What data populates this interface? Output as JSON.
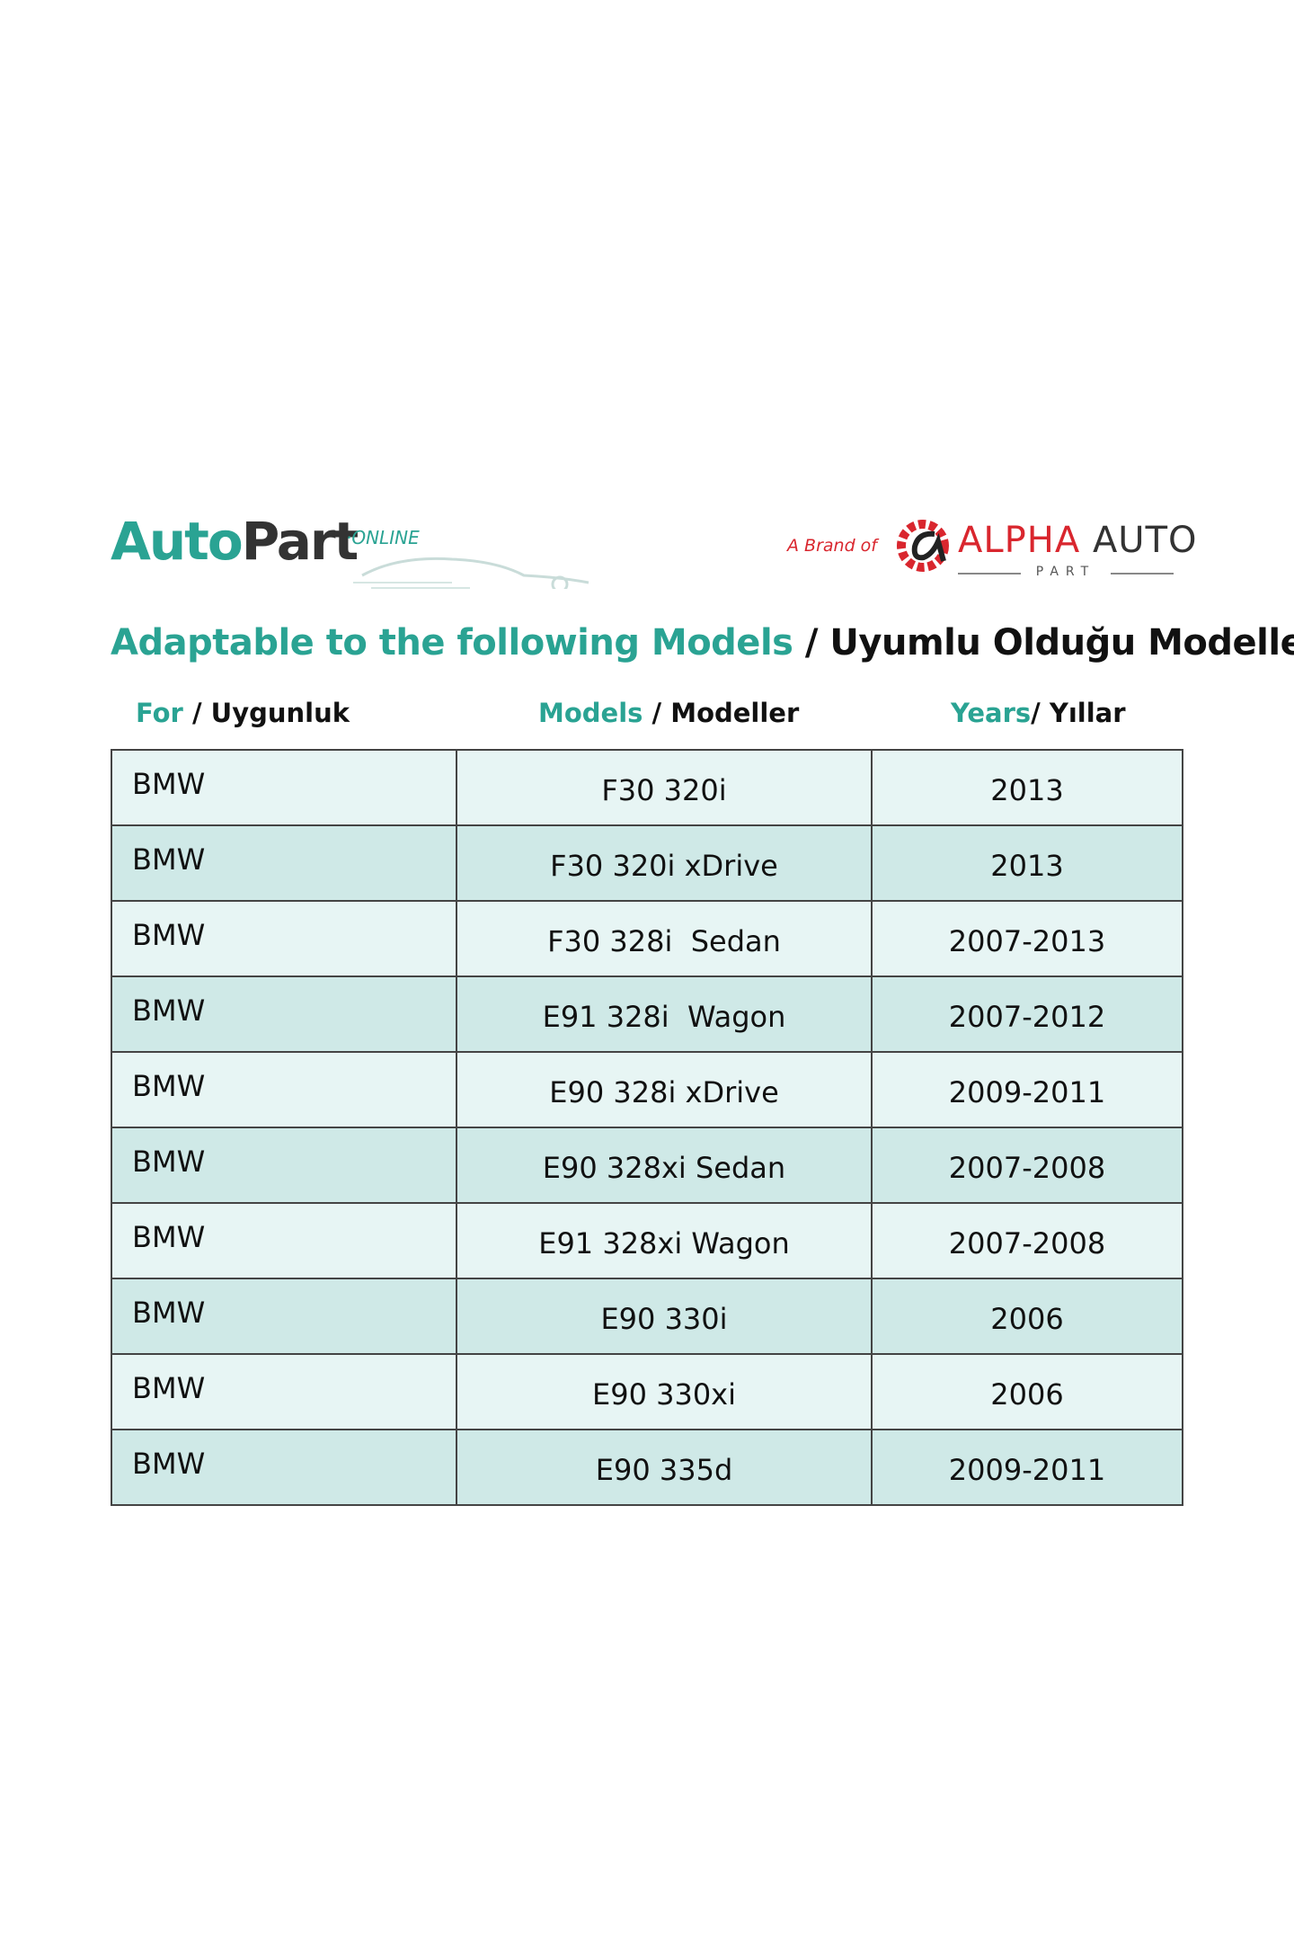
{
  "logo_left": {
    "word1": "Auto",
    "word2": "Part",
    "suffix": "·ONLINE"
  },
  "logo_right": {
    "prefix": "A Brand of",
    "word1": "ALPHA",
    "word2": "AUTO",
    "sub": "PART"
  },
  "title": {
    "highlight": "Adaptable to the following Models",
    "rest": " / Uyumlu Olduğu Modeller"
  },
  "columns": [
    {
      "highlight": "For",
      "rest": " / Uygunluk"
    },
    {
      "highlight": "Models",
      "rest": " / Modeller"
    },
    {
      "highlight": "Years",
      "rest": "/ Yıllar"
    }
  ],
  "rows": [
    [
      "BMW",
      "F30 320i",
      "2013"
    ],
    [
      "BMW",
      "F30 320i xDrive",
      "2013"
    ],
    [
      "BMW",
      "F30 328i  Sedan",
      "2007-2013"
    ],
    [
      "BMW",
      "E91 328i  Wagon",
      "2007-2012"
    ],
    [
      "BMW",
      "E90 328i xDrive",
      "2009-2011"
    ],
    [
      "BMW",
      "E90 328xi Sedan",
      "2007-2008"
    ],
    [
      "BMW",
      "E91 328xi Wagon",
      "2007-2008"
    ],
    [
      "BMW",
      "E90 330i",
      "2006"
    ],
    [
      "BMW",
      "E90 330xi",
      "2006"
    ],
    [
      "BMW",
      "E90 335d",
      "2009-2011"
    ]
  ],
  "colors": {
    "accent": "#2aa393",
    "brand_red": "#d9262e",
    "row_light": "#e7f5f4",
    "row_dark": "#cfe9e7"
  }
}
